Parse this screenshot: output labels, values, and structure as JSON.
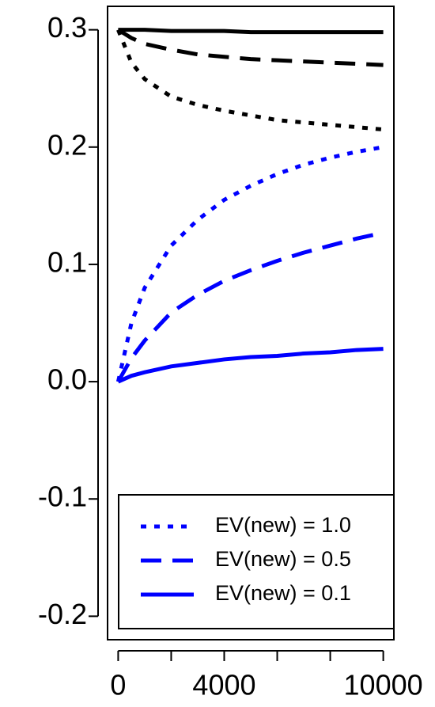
{
  "chart_data": {
    "type": "line",
    "x": [
      0,
      500,
      1000,
      2000,
      3000,
      4000,
      5000,
      6000,
      7000,
      8000,
      9000,
      10000
    ],
    "series": [
      {
        "color": "#000000",
        "linestyle": "solid",
        "values": [
          0.3,
          0.3,
          0.3,
          0.299,
          0.299,
          0.299,
          0.298,
          0.298,
          0.298,
          0.298,
          0.298,
          0.298
        ]
      },
      {
        "color": "#000000",
        "linestyle": "dashed",
        "values": [
          0.3,
          0.293,
          0.288,
          0.283,
          0.279,
          0.277,
          0.275,
          0.274,
          0.273,
          0.272,
          0.271,
          0.27
        ]
      },
      {
        "color": "#000000",
        "linestyle": "dotted",
        "values": [
          0.3,
          0.272,
          0.258,
          0.243,
          0.236,
          0.231,
          0.227,
          0.223,
          0.221,
          0.219,
          0.217,
          0.215
        ]
      },
      {
        "name": "EV(new) = 1.0",
        "color": "#0000ff",
        "linestyle": "dotted",
        "values": [
          0,
          0.05,
          0.08,
          0.116,
          0.138,
          0.155,
          0.167,
          0.177,
          0.185,
          0.191,
          0.196,
          0.2
        ]
      },
      {
        "name": "EV(new) = 0.5",
        "color": "#0000ff",
        "linestyle": "dashed",
        "values": [
          0,
          0.02,
          0.035,
          0.059,
          0.074,
          0.086,
          0.095,
          0.103,
          0.11,
          0.116,
          0.122,
          0.127
        ]
      },
      {
        "name": "EV(new) = 0.1",
        "color": "#0000ff",
        "linestyle": "solid",
        "values": [
          0,
          0.005,
          0.008,
          0.013,
          0.016,
          0.019,
          0.021,
          0.022,
          0.024,
          0.025,
          0.027,
          0.028
        ]
      }
    ],
    "xlim": [
      -400,
      10400
    ],
    "xticks": [
      0,
      4000,
      10000
    ],
    "xminor_ticks": [
      2000,
      6000,
      8000
    ],
    "ylim": [
      -0.22,
      0.32
    ],
    "yticks": [
      {
        "value": 0.3,
        "label": "0.3"
      },
      {
        "value": 0.2,
        "label": "0.2"
      },
      {
        "value": 0.1,
        "label": "0.1"
      },
      {
        "value": 0,
        "label": "0.0"
      },
      {
        "value": -0.1,
        "label": "-0.1"
      },
      {
        "value": -0.2,
        "label": "-0.2"
      }
    ],
    "legend": "bottom-right"
  }
}
